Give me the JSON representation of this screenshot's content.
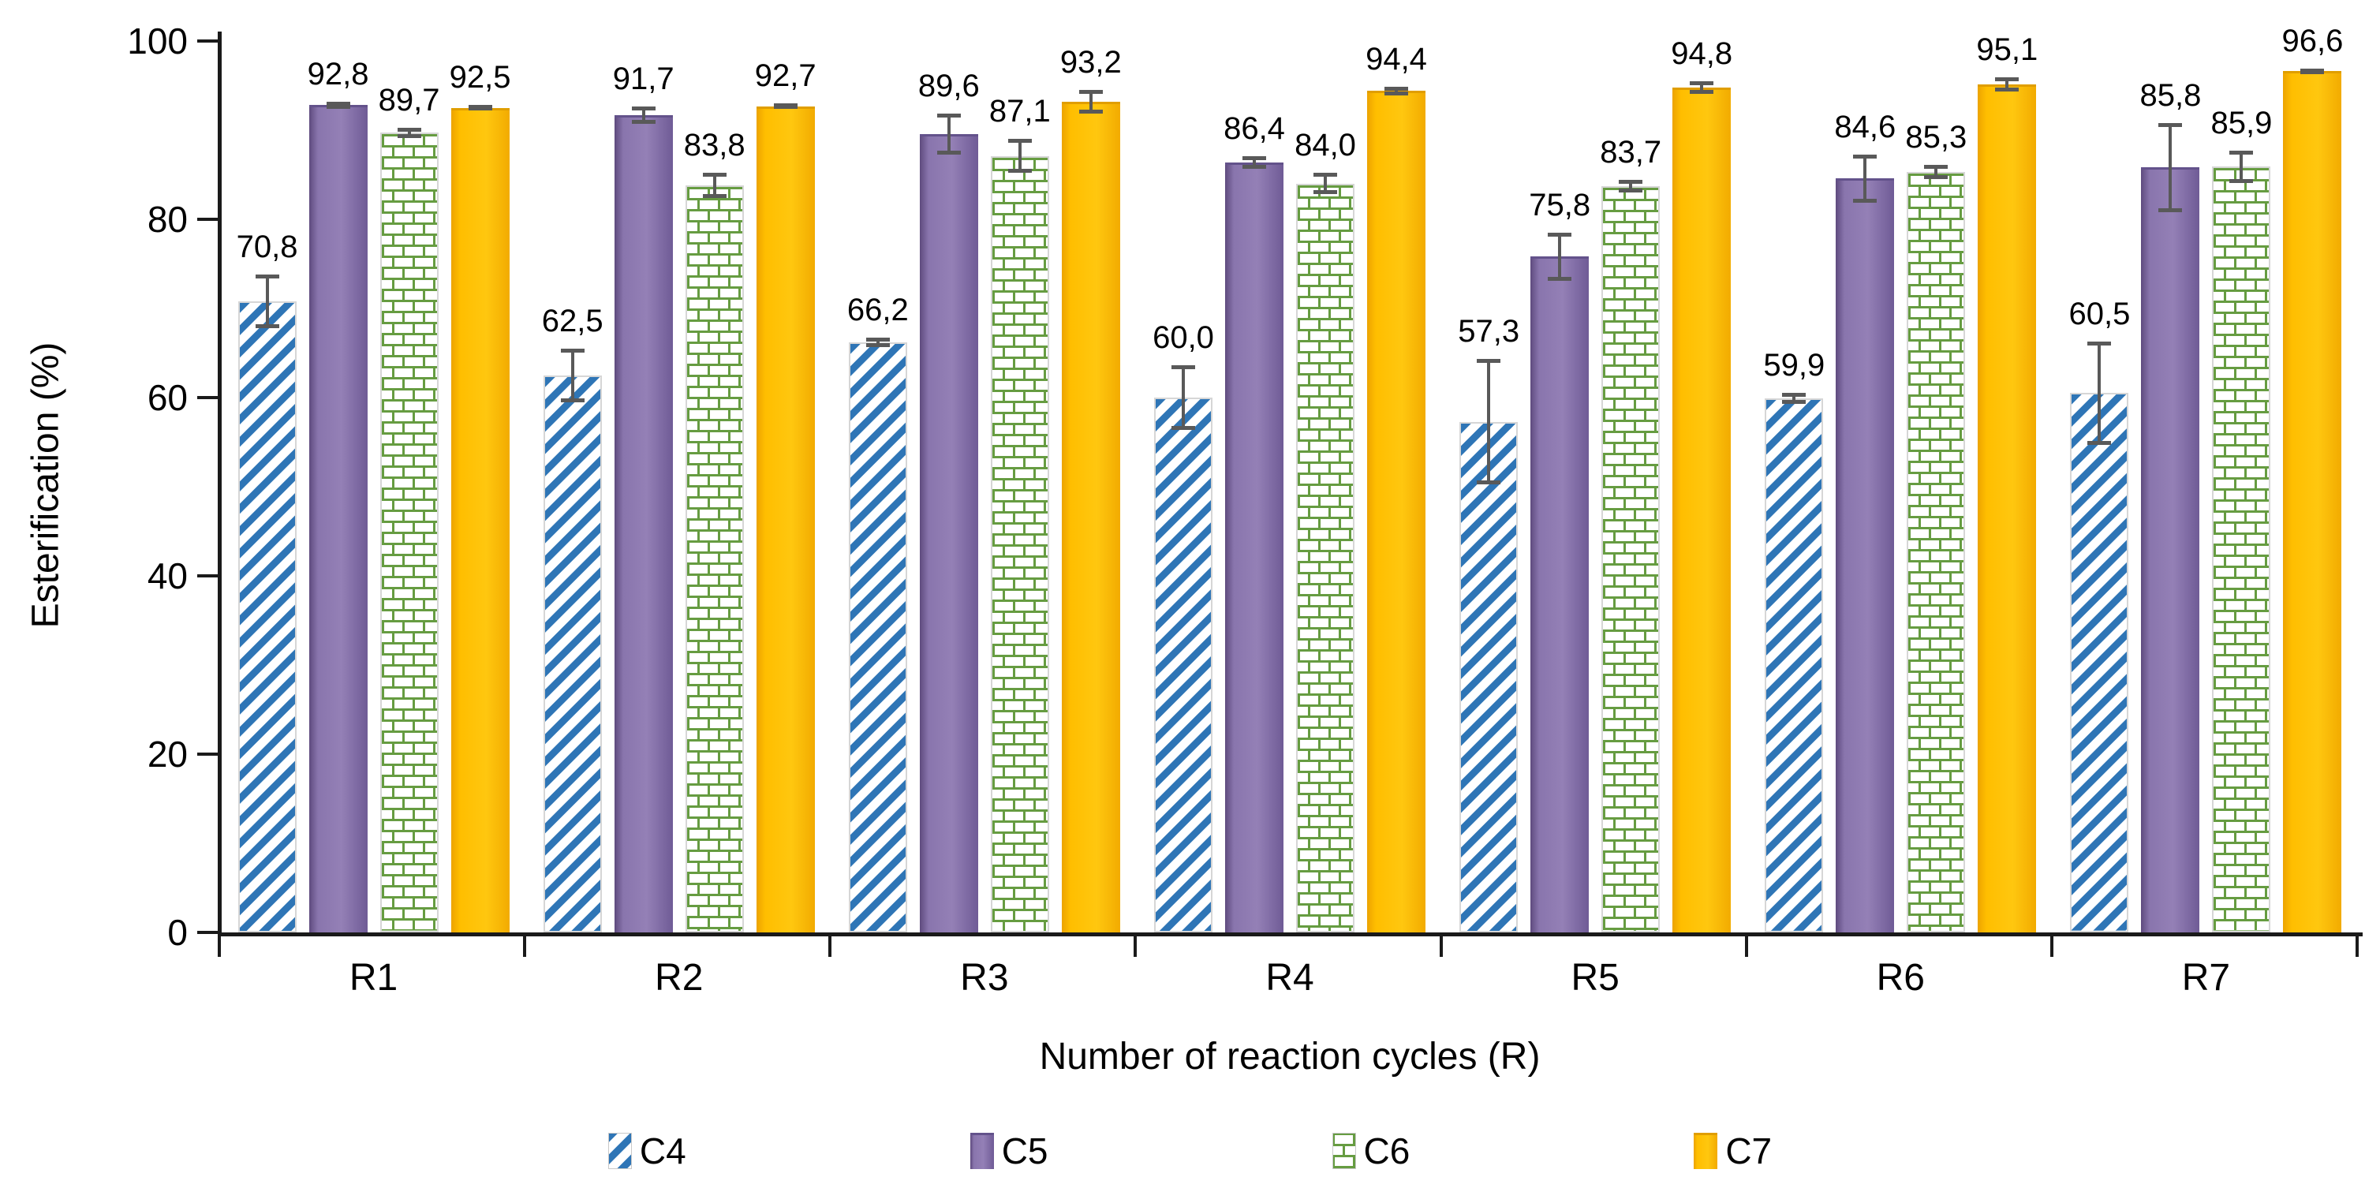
{
  "chart_data": {
    "type": "bar",
    "title": "",
    "xlabel": "Number of reaction cycles (R)",
    "ylabel": "Esterification (%)",
    "categories": [
      "R1",
      "R2",
      "R3",
      "R4",
      "R5",
      "R6",
      "R7"
    ],
    "series": [
      {
        "name": "C4",
        "pattern": "diagonal-stripes",
        "color": "#2E75B6",
        "values": [
          70.8,
          62.5,
          66.2,
          60.0,
          57.3,
          59.9,
          60.5
        ],
        "errors": [
          3.0,
          3.0,
          0.5,
          3.6,
          7.0,
          0.6,
          5.8
        ]
      },
      {
        "name": "C5",
        "pattern": "solid",
        "color": "#8672AB",
        "values": [
          92.8,
          91.7,
          89.6,
          86.4,
          75.8,
          84.6,
          85.8
        ],
        "errors": [
          0.4,
          1.0,
          2.3,
          0.7,
          2.7,
          2.7,
          5.0
        ]
      },
      {
        "name": "C6",
        "pattern": "brick",
        "color": "#669C41",
        "values": [
          89.7,
          83.8,
          87.1,
          84.0,
          83.7,
          85.3,
          85.9
        ],
        "errors": [
          0.6,
          1.4,
          1.9,
          1.2,
          0.7,
          0.8,
          1.8
        ]
      },
      {
        "name": "C7",
        "pattern": "solid",
        "color": "#FFC000",
        "values": [
          92.5,
          92.7,
          93.2,
          94.4,
          94.8,
          95.1,
          96.6
        ],
        "errors": [
          0.3,
          0.3,
          1.3,
          0.5,
          0.7,
          0.8,
          0.3
        ]
      }
    ],
    "ylim": [
      0,
      100
    ],
    "yticks": [
      0,
      20,
      40,
      60,
      80,
      100
    ],
    "grid": false,
    "legend_position": "bottom",
    "error_bar_color": "#595959",
    "decimal_separator": ","
  }
}
